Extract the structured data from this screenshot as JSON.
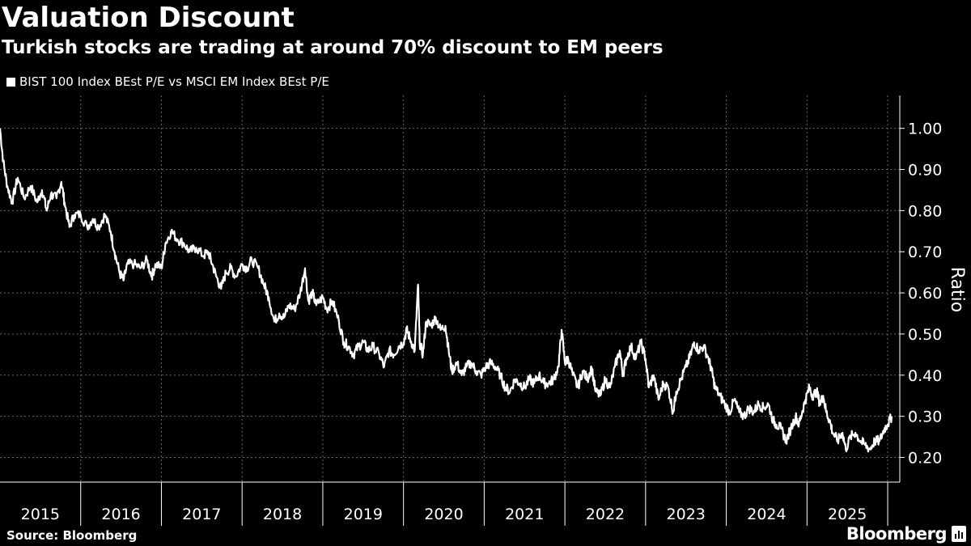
{
  "chart_data": {
    "type": "line",
    "title": "Valuation Discount",
    "subtitle": "Turkish stocks are trading at around 70% discount to EM peers",
    "series": [
      {
        "name": "BIST 100 Index BEst P/E vs MSCI EM Index BEst P/E",
        "color": "#ffffff",
        "points": [
          [
            2015.0,
            1.0
          ],
          [
            2015.04,
            0.92
          ],
          [
            2015.09,
            0.86
          ],
          [
            2015.15,
            0.82
          ],
          [
            2015.22,
            0.88
          ],
          [
            2015.3,
            0.83
          ],
          [
            2015.38,
            0.86
          ],
          [
            2015.46,
            0.82
          ],
          [
            2015.52,
            0.85
          ],
          [
            2015.58,
            0.8
          ],
          [
            2015.63,
            0.84
          ],
          [
            2015.7,
            0.83
          ],
          [
            2015.76,
            0.87
          ],
          [
            2015.8,
            0.82
          ],
          [
            2015.86,
            0.76
          ],
          [
            2015.92,
            0.79
          ],
          [
            2016.0,
            0.79
          ],
          [
            2016.08,
            0.76
          ],
          [
            2016.15,
            0.78
          ],
          [
            2016.22,
            0.76
          ],
          [
            2016.3,
            0.79
          ],
          [
            2016.37,
            0.75
          ],
          [
            2016.42,
            0.7
          ],
          [
            2016.48,
            0.65
          ],
          [
            2016.53,
            0.63
          ],
          [
            2016.58,
            0.67
          ],
          [
            2016.66,
            0.67
          ],
          [
            2016.74,
            0.66
          ],
          [
            2016.82,
            0.68
          ],
          [
            2016.88,
            0.64
          ],
          [
            2016.93,
            0.67
          ],
          [
            2017.0,
            0.66
          ],
          [
            2017.05,
            0.72
          ],
          [
            2017.12,
            0.75
          ],
          [
            2017.2,
            0.73
          ],
          [
            2017.28,
            0.72
          ],
          [
            2017.35,
            0.7
          ],
          [
            2017.43,
            0.71
          ],
          [
            2017.52,
            0.69
          ],
          [
            2017.58,
            0.7
          ],
          [
            2017.63,
            0.67
          ],
          [
            2017.68,
            0.64
          ],
          [
            2017.74,
            0.61
          ],
          [
            2017.8,
            0.65
          ],
          [
            2017.86,
            0.66
          ],
          [
            2017.92,
            0.64
          ],
          [
            2018.0,
            0.67
          ],
          [
            2018.06,
            0.66
          ],
          [
            2018.12,
            0.68
          ],
          [
            2018.2,
            0.66
          ],
          [
            2018.27,
            0.62
          ],
          [
            2018.33,
            0.59
          ],
          [
            2018.4,
            0.53
          ],
          [
            2018.46,
            0.55
          ],
          [
            2018.52,
            0.54
          ],
          [
            2018.58,
            0.57
          ],
          [
            2018.65,
            0.56
          ],
          [
            2018.72,
            0.6
          ],
          [
            2018.78,
            0.66
          ],
          [
            2018.82,
            0.58
          ],
          [
            2018.87,
            0.6
          ],
          [
            2018.92,
            0.57
          ],
          [
            2019.0,
            0.59
          ],
          [
            2019.05,
            0.56
          ],
          [
            2019.12,
            0.58
          ],
          [
            2019.2,
            0.53
          ],
          [
            2019.26,
            0.48
          ],
          [
            2019.32,
            0.47
          ],
          [
            2019.38,
            0.45
          ],
          [
            2019.44,
            0.47
          ],
          [
            2019.5,
            0.48
          ],
          [
            2019.56,
            0.46
          ],
          [
            2019.62,
            0.47
          ],
          [
            2019.7,
            0.45
          ],
          [
            2019.76,
            0.42
          ],
          [
            2019.82,
            0.46
          ],
          [
            2019.88,
            0.45
          ],
          [
            2019.94,
            0.47
          ],
          [
            2020.0,
            0.48
          ],
          [
            2020.04,
            0.51
          ],
          [
            2020.08,
            0.49
          ],
          [
            2020.14,
            0.46
          ],
          [
            2020.18,
            0.62
          ],
          [
            2020.2,
            0.48
          ],
          [
            2020.24,
            0.45
          ],
          [
            2020.28,
            0.53
          ],
          [
            2020.34,
            0.52
          ],
          [
            2020.4,
            0.54
          ],
          [
            2020.46,
            0.51
          ],
          [
            2020.52,
            0.52
          ],
          [
            2020.56,
            0.46
          ],
          [
            2020.6,
            0.41
          ],
          [
            2020.66,
            0.43
          ],
          [
            2020.72,
            0.4
          ],
          [
            2020.78,
            0.42
          ],
          [
            2020.84,
            0.43
          ],
          [
            2020.9,
            0.41
          ],
          [
            2020.96,
            0.4
          ],
          [
            2021.02,
            0.42
          ],
          [
            2021.08,
            0.43
          ],
          [
            2021.14,
            0.42
          ],
          [
            2021.2,
            0.4
          ],
          [
            2021.26,
            0.37
          ],
          [
            2021.32,
            0.36
          ],
          [
            2021.38,
            0.39
          ],
          [
            2021.44,
            0.38
          ],
          [
            2021.5,
            0.37
          ],
          [
            2021.56,
            0.39
          ],
          [
            2021.62,
            0.38
          ],
          [
            2021.68,
            0.4
          ],
          [
            2021.74,
            0.38
          ],
          [
            2021.8,
            0.38
          ],
          [
            2021.86,
            0.39
          ],
          [
            2021.92,
            0.42
          ],
          [
            2021.96,
            0.51
          ],
          [
            2022.0,
            0.43
          ],
          [
            2022.04,
            0.44
          ],
          [
            2022.1,
            0.4
          ],
          [
            2022.16,
            0.37
          ],
          [
            2022.22,
            0.41
          ],
          [
            2022.28,
            0.39
          ],
          [
            2022.33,
            0.42
          ],
          [
            2022.38,
            0.36
          ],
          [
            2022.44,
            0.35
          ],
          [
            2022.5,
            0.39
          ],
          [
            2022.56,
            0.37
          ],
          [
            2022.62,
            0.42
          ],
          [
            2022.68,
            0.46
          ],
          [
            2022.72,
            0.4
          ],
          [
            2022.76,
            0.44
          ],
          [
            2022.82,
            0.47
          ],
          [
            2022.88,
            0.44
          ],
          [
            2022.94,
            0.48
          ],
          [
            2023.0,
            0.44
          ],
          [
            2023.04,
            0.37
          ],
          [
            2023.1,
            0.4
          ],
          [
            2023.16,
            0.34
          ],
          [
            2023.22,
            0.38
          ],
          [
            2023.28,
            0.37
          ],
          [
            2023.34,
            0.31
          ],
          [
            2023.38,
            0.36
          ],
          [
            2023.44,
            0.39
          ],
          [
            2023.5,
            0.42
          ],
          [
            2023.56,
            0.45
          ],
          [
            2023.6,
            0.48
          ],
          [
            2023.66,
            0.46
          ],
          [
            2023.72,
            0.47
          ],
          [
            2023.78,
            0.44
          ],
          [
            2023.82,
            0.41
          ],
          [
            2023.86,
            0.37
          ],
          [
            2023.92,
            0.35
          ],
          [
            2023.98,
            0.33
          ],
          [
            2024.04,
            0.31
          ],
          [
            2024.1,
            0.34
          ],
          [
            2024.16,
            0.31
          ],
          [
            2024.22,
            0.3
          ],
          [
            2024.28,
            0.32
          ],
          [
            2024.34,
            0.31
          ],
          [
            2024.4,
            0.33
          ],
          [
            2024.46,
            0.32
          ],
          [
            2024.52,
            0.33
          ],
          [
            2024.58,
            0.29
          ],
          [
            2024.62,
            0.28
          ],
          [
            2024.68,
            0.27
          ],
          [
            2024.74,
            0.24
          ],
          [
            2024.8,
            0.27
          ],
          [
            2024.86,
            0.3
          ],
          [
            2024.9,
            0.28
          ],
          [
            2024.94,
            0.31
          ],
          [
            2024.98,
            0.34
          ],
          [
            2025.03,
            0.37
          ],
          [
            2025.07,
            0.35
          ],
          [
            2025.12,
            0.36
          ],
          [
            2025.16,
            0.33
          ],
          [
            2025.2,
            0.35
          ],
          [
            2025.24,
            0.31
          ],
          [
            2025.28,
            0.29
          ],
          [
            2025.32,
            0.26
          ],
          [
            2025.38,
            0.24
          ],
          [
            2025.44,
            0.26
          ],
          [
            2025.48,
            0.22
          ],
          [
            2025.54,
            0.25
          ],
          [
            2025.6,
            0.26
          ],
          [
            2025.66,
            0.24
          ],
          [
            2025.72,
            0.23
          ],
          [
            2025.78,
            0.22
          ],
          [
            2025.84,
            0.24
          ],
          [
            2025.9,
            0.24
          ],
          [
            2025.96,
            0.27
          ],
          [
            2026.0,
            0.28
          ],
          [
            2026.05,
            0.3
          ]
        ]
      }
    ],
    "xlabel": "",
    "ylabel": "Ratio",
    "xlim": [
      2015.0,
      2026.15
    ],
    "ylim": [
      0.14,
      1.08
    ],
    "x_tick_labels": [
      "2015",
      "2016",
      "2017",
      "2018",
      "2019",
      "2020",
      "2021",
      "2022",
      "2023",
      "2024",
      "2025"
    ],
    "x_ticks": [
      2015.5,
      2016.5,
      2017.5,
      2018.5,
      2019.5,
      2020.5,
      2021.5,
      2022.5,
      2023.5,
      2024.5,
      2025.5
    ],
    "x_gridlines": [
      2016,
      2017,
      2018,
      2019,
      2020,
      2021,
      2022,
      2023,
      2024,
      2025,
      2026
    ],
    "y_ticks": [
      0.2,
      0.3,
      0.4,
      0.5,
      0.6,
      0.7,
      0.8,
      0.9,
      1.0
    ],
    "y_tick_labels": [
      "0.20",
      "0.30",
      "0.40",
      "0.50",
      "0.60",
      "0.70",
      "0.80",
      "0.90",
      "1.00"
    ],
    "grid": true,
    "legend_position": "top-left"
  },
  "footer": {
    "source": "Source: Bloomberg",
    "brand": "Bloomberg"
  }
}
